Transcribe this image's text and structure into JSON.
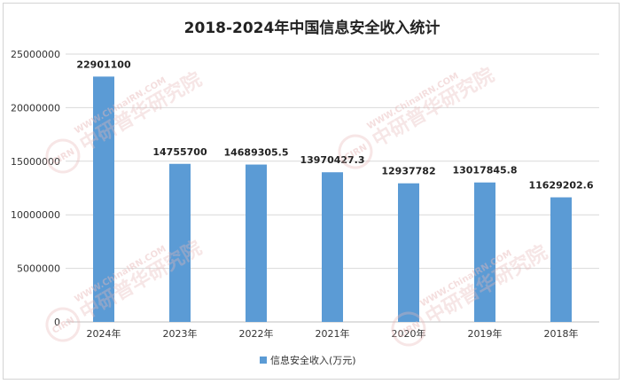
{
  "chart_data": {
    "type": "bar",
    "title": "2018-2024年中国信息安全收入统计",
    "categories": [
      "2024年",
      "2023年",
      "2022年",
      "2021年",
      "2020年",
      "2019年",
      "2018年"
    ],
    "series": [
      {
        "name": "信息安全收入(万元)",
        "values": [
          22901100,
          14755700,
          14689305.5,
          13970427.3,
          12937782,
          13017845.8,
          11629202.6
        ],
        "labels": [
          "22901100",
          "14755700",
          "14689305.5",
          "13970427.3",
          "12937782",
          "13017845.8",
          "11629202.6"
        ]
      }
    ],
    "ylim": [
      0,
      25000000
    ],
    "yticks": [
      "0",
      "5000000",
      "10000000",
      "15000000",
      "20000000",
      "25000000"
    ],
    "grid": true,
    "legend_position": "bottom",
    "bar_color": "#5b9bd5"
  },
  "watermark": {
    "text": "中研普华研究院",
    "url": "WWW.ChinaIRN.COM",
    "logo": "CIRN"
  }
}
